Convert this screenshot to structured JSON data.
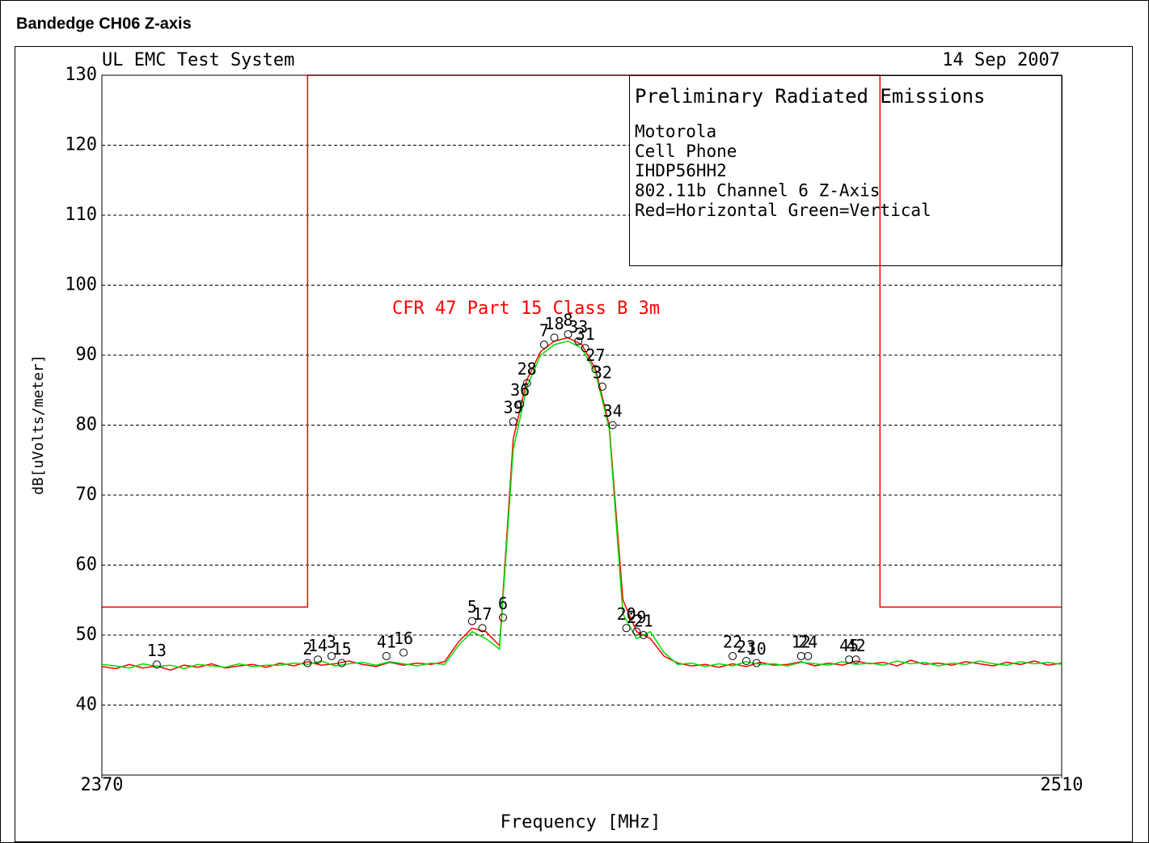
{
  "chart_data": {
    "type": "line",
    "title": "Bandedge CH06 Z-axis",
    "system_label": "UL EMC Test System",
    "date": "14 Sep 2007",
    "xlabel": "Frequency [MHz]",
    "ylabel": "dB[uVolts/meter]",
    "info_box": [
      "Preliminary Radiated Emissions",
      "Motorola",
      "Cell Phone",
      "IHDP56HH2",
      "802.11b Channel 6 Z-Axis",
      "Red=Horizontal  Green=Vertical"
    ],
    "xlim": [
      2370,
      2510
    ],
    "xticks": [
      2370,
      2510
    ],
    "ylim": [
      30,
      130
    ],
    "yticks": [
      40,
      50,
      60,
      70,
      80,
      90,
      100,
      110,
      120,
      130
    ],
    "grid": true,
    "limit": {
      "name": "CFR 47 Part 15  Class B 3m",
      "color": "#ff0000",
      "x": [
        2370,
        2400,
        2400,
        2483.5,
        2483.5,
        2510
      ],
      "values": [
        54,
        54,
        130,
        130,
        54,
        54
      ]
    },
    "x": [
      2370,
      2372,
      2374,
      2376,
      2378,
      2380,
      2382,
      2384,
      2386,
      2388,
      2390,
      2392,
      2394,
      2396,
      2398,
      2400,
      2402,
      2404,
      2406,
      2408,
      2410,
      2412,
      2414,
      2416,
      2418,
      2420,
      2422,
      2424,
      2426,
      2428,
      2430,
      2432,
      2434,
      2436,
      2438,
      2440,
      2442,
      2444,
      2446,
      2448,
      2450,
      2452,
      2454,
      2456,
      2458,
      2460,
      2462,
      2464,
      2466,
      2468,
      2470,
      2472,
      2474,
      2476,
      2478,
      2480,
      2482,
      2484,
      2486,
      2488,
      2490,
      2492,
      2494,
      2496,
      2498,
      2500,
      2502,
      2504,
      2506,
      2508,
      2510
    ],
    "series": [
      {
        "name": "Horizontal",
        "color": "#ff0000",
        "values": [
          45.5,
          45.2,
          45.8,
          45.3,
          45.6,
          45.0,
          45.7,
          45.4,
          45.9,
          45.3,
          45.6,
          45.8,
          45.4,
          46.0,
          45.6,
          46.2,
          45.7,
          45.9,
          46.3,
          45.8,
          45.5,
          46.1,
          45.7,
          46.0,
          45.8,
          46.2,
          49.0,
          51.0,
          50.5,
          48.5,
          78.0,
          86.5,
          90.5,
          92.0,
          92.5,
          91.5,
          88.0,
          80.0,
          55.0,
          50.5,
          49.5,
          47.0,
          46.0,
          45.6,
          45.8,
          45.4,
          45.9,
          45.5,
          46.1,
          45.7,
          45.8,
          46.2,
          45.6,
          46.0,
          45.7,
          46.3,
          45.9,
          46.1,
          45.6,
          46.4,
          45.8,
          46.0,
          45.7,
          46.2,
          45.9,
          45.6,
          46.1,
          45.8,
          46.3,
          45.7,
          46.0
        ]
      },
      {
        "name": "Vertical",
        "color": "#00e000",
        "values": [
          45.8,
          45.6,
          45.3,
          45.9,
          45.5,
          45.7,
          45.2,
          45.8,
          45.6,
          45.4,
          45.9,
          45.5,
          45.7,
          45.7,
          46.0,
          45.8,
          46.3,
          45.6,
          45.9,
          46.1,
          45.7,
          46.2,
          45.9,
          45.6,
          46.0,
          45.8,
          48.5,
          50.5,
          49.5,
          48.0,
          76.5,
          85.5,
          90.0,
          91.5,
          92.0,
          91.0,
          87.5,
          79.5,
          53.0,
          49.5,
          50.5,
          47.5,
          45.8,
          46.0,
          45.5,
          45.9,
          45.6,
          46.2,
          45.8,
          45.9,
          45.6,
          46.1,
          45.9,
          45.7,
          46.2,
          45.8,
          46.0,
          45.7,
          46.3,
          45.9,
          46.1,
          45.6,
          46.0,
          45.8,
          46.3,
          45.9,
          45.7,
          46.2,
          45.9,
          46.1,
          45.8
        ]
      }
    ],
    "markers": [
      {
        "label": "13",
        "x": 2378,
        "y": 45.8
      },
      {
        "label": "2",
        "x": 2400,
        "y": 46.0
      },
      {
        "label": "14",
        "x": 2401.5,
        "y": 46.5
      },
      {
        "label": "3",
        "x": 2403.5,
        "y": 47.0
      },
      {
        "label": "15",
        "x": 2405,
        "y": 46.0
      },
      {
        "label": "41",
        "x": 2411.5,
        "y": 47.0
      },
      {
        "label": "16",
        "x": 2414,
        "y": 47.5
      },
      {
        "label": "5",
        "x": 2424,
        "y": 52.0
      },
      {
        "label": "17",
        "x": 2425.5,
        "y": 51.0
      },
      {
        "label": "6",
        "x": 2428.5,
        "y": 52.5
      },
      {
        "label": "39",
        "x": 2430,
        "y": 80.5
      },
      {
        "label": "36",
        "x": 2431,
        "y": 83.0
      },
      {
        "label": "28",
        "x": 2432,
        "y": 86.0
      },
      {
        "label": "7",
        "x": 2434.5,
        "y": 91.5
      },
      {
        "label": "18",
        "x": 2436,
        "y": 92.5
      },
      {
        "label": "8",
        "x": 2438,
        "y": 93.0
      },
      {
        "label": "33",
        "x": 2439.5,
        "y": 92.0
      },
      {
        "label": "31",
        "x": 2440.5,
        "y": 91.0
      },
      {
        "label": "27",
        "x": 2442,
        "y": 88.0
      },
      {
        "label": "32",
        "x": 2443,
        "y": 85.5
      },
      {
        "label": "34",
        "x": 2444.5,
        "y": 80.0
      },
      {
        "label": "20",
        "x": 2446.5,
        "y": 51.0
      },
      {
        "label": "29",
        "x": 2448,
        "y": 50.5
      },
      {
        "label": "21",
        "x": 2449,
        "y": 50.0
      },
      {
        "label": "22",
        "x": 2462,
        "y": 47.0
      },
      {
        "label": "23",
        "x": 2464,
        "y": 46.3
      },
      {
        "label": "10",
        "x": 2465.5,
        "y": 46.0
      },
      {
        "label": "12",
        "x": 2472,
        "y": 47.0
      },
      {
        "label": "24",
        "x": 2473,
        "y": 47.0
      },
      {
        "label": "45",
        "x": 2479,
        "y": 46.5
      },
      {
        "label": "42",
        "x": 2480,
        "y": 46.5
      }
    ]
  }
}
